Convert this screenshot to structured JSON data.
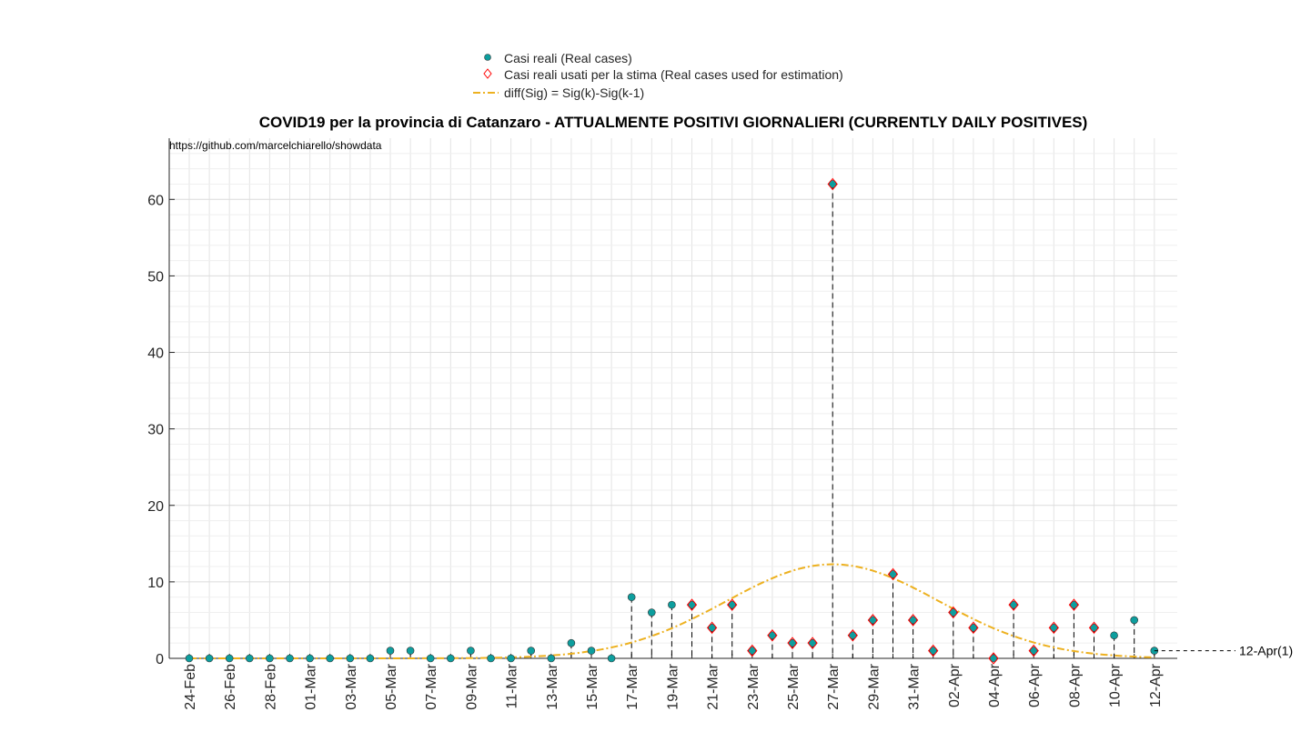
{
  "chart_data": {
    "type": "scatter",
    "title": "COVID19 per la provincia di Catanzaro - ATTUALMENTE POSITIVI GIORNALIERI (CURRENTLY DAILY POSITIVES)",
    "source_text": "https://github.com/marcelchiarello/showdata",
    "xlabel": "",
    "ylabel": "",
    "ylim": [
      0,
      68
    ],
    "yticks": [
      0,
      10,
      20,
      30,
      40,
      50,
      60
    ],
    "grid": true,
    "legend_position": "top-center",
    "x": [
      "24-Feb",
      "25-Feb",
      "26-Feb",
      "27-Feb",
      "28-Feb",
      "29-Feb",
      "01-Mar",
      "02-Mar",
      "03-Mar",
      "04-Mar",
      "05-Mar",
      "06-Mar",
      "07-Mar",
      "08-Mar",
      "09-Mar",
      "10-Mar",
      "11-Mar",
      "12-Mar",
      "13-Mar",
      "14-Mar",
      "15-Mar",
      "16-Mar",
      "17-Mar",
      "18-Mar",
      "19-Mar",
      "20-Mar",
      "21-Mar",
      "22-Mar",
      "23-Mar",
      "24-Mar",
      "25-Mar",
      "26-Mar",
      "27-Mar",
      "28-Mar",
      "29-Mar",
      "30-Mar",
      "31-Mar",
      "01-Apr",
      "02-Apr",
      "03-Apr",
      "04-Apr",
      "05-Apr",
      "06-Apr",
      "07-Apr",
      "08-Apr",
      "09-Apr",
      "10-Apr",
      "11-Apr",
      "12-Apr"
    ],
    "xtick_labels": [
      "24-Feb",
      "26-Feb",
      "28-Feb",
      "01-Mar",
      "03-Mar",
      "05-Mar",
      "07-Mar",
      "09-Mar",
      "11-Mar",
      "13-Mar",
      "15-Mar",
      "17-Mar",
      "19-Mar",
      "21-Mar",
      "23-Mar",
      "25-Mar",
      "27-Mar",
      "29-Mar",
      "31-Mar",
      "02-Apr",
      "04-Apr",
      "06-Apr",
      "08-Apr",
      "10-Apr",
      "12-Apr"
    ],
    "series": [
      {
        "name": "Casi reali (Real cases)",
        "color": "#0d9e9e",
        "marker": "circle",
        "values": [
          0,
          0,
          0,
          0,
          0,
          0,
          0,
          0,
          0,
          0,
          1,
          1,
          0,
          0,
          1,
          0,
          0,
          1,
          0,
          2,
          1,
          0,
          8,
          6,
          7,
          7,
          4,
          7,
          1,
          3,
          2,
          2,
          62,
          3,
          5,
          11,
          5,
          1,
          6,
          4,
          0,
          7,
          1,
          4,
          7,
          4,
          3,
          5,
          1
        ]
      },
      {
        "name": "Casi reali usati per la stima (Real cases used for estimation)",
        "color": "#ff0000",
        "marker": "diamond",
        "start_index": 25,
        "end_index": 45
      },
      {
        "name": "diff(Sig) = Sig(k)-Sig(k-1)",
        "color": "#edb120",
        "style": "dash-dot",
        "peak_date": "27-Mar",
        "peak_value": 12.3,
        "spread_days": 5.3
      }
    ],
    "annotation": "12-Apr(1)"
  }
}
